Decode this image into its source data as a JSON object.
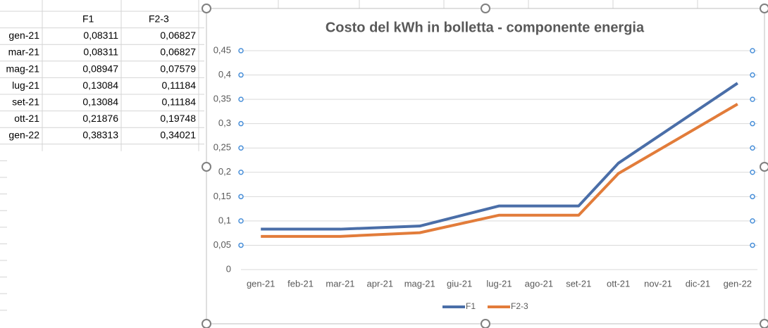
{
  "table": {
    "header": [
      "F1",
      "F2-3"
    ],
    "rows": [
      [
        "gen-21",
        "0,08311",
        "0,06827"
      ],
      [
        "mar-21",
        "0,08311",
        "0,06827"
      ],
      [
        "mag-21",
        "0,08947",
        "0,07579"
      ],
      [
        "lug-21",
        "0,13084",
        "0,11184"
      ],
      [
        "set-21",
        "0,13084",
        "0,11184"
      ],
      [
        "ott-21",
        "0,21876",
        "0,19748"
      ],
      [
        "gen-22",
        "0,38313",
        "0,34021"
      ]
    ]
  },
  "chart_data": {
    "type": "line",
    "title": "Costo del kWh in bolletta - componente energia",
    "xticks": [
      "gen-21",
      "feb-21",
      "mar-21",
      "apr-21",
      "mag-21",
      "giu-21",
      "lug-21",
      "ago-21",
      "set-21",
      "ott-21",
      "nov-21",
      "dic-21",
      "gen-22"
    ],
    "x": [
      "gen-21",
      "mar-21",
      "mag-21",
      "lug-21",
      "set-21",
      "ott-21",
      "gen-22"
    ],
    "series": [
      {
        "name": "F1",
        "color": "#4a6ea8",
        "values": [
          0.08311,
          0.08311,
          0.08947,
          0.13084,
          0.13084,
          0.21876,
          0.38313
        ]
      },
      {
        "name": "F2-3",
        "color": "#e27c3a",
        "values": [
          0.06827,
          0.06827,
          0.07579,
          0.11184,
          0.11184,
          0.19748,
          0.34021
        ]
      }
    ],
    "ylim": [
      0,
      0.45
    ],
    "yticks": [
      0,
      {
        "value": 0.05,
        "label": "0,05"
      },
      {
        "value": 0.1,
        "label": "0,1"
      },
      {
        "value": 0.15,
        "label": "0,15"
      },
      {
        "value": 0.2,
        "label": "0,2"
      },
      {
        "value": 0.25,
        "label": "0,25"
      },
      {
        "value": 0.3,
        "label": "0,3"
      },
      {
        "value": 0.35,
        "label": "0,35"
      },
      {
        "value": 0.4,
        "label": "0,4"
      },
      {
        "value": 0.45,
        "label": "0,45"
      }
    ],
    "grid": true,
    "legend": "bottom"
  }
}
